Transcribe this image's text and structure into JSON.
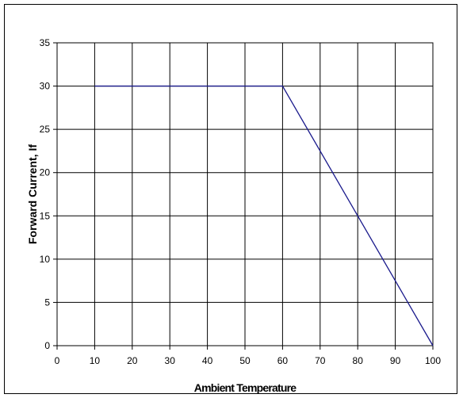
{
  "chart_data": {
    "type": "line",
    "title": "",
    "xlabel": "Ambient Temperature",
    "ylabel": "Forward Current, If",
    "xlim": [
      0,
      100
    ],
    "ylim": [
      0,
      35
    ],
    "xticks": [
      0,
      10,
      20,
      30,
      40,
      50,
      60,
      70,
      80,
      90,
      100
    ],
    "yticks": [
      0,
      5,
      10,
      15,
      20,
      25,
      30,
      35
    ],
    "grid": true,
    "legend": "none",
    "series": [
      {
        "color": "#1a1a8c",
        "x": [
          10,
          60,
          100
        ],
        "y": [
          30,
          30,
          0
        ]
      }
    ]
  }
}
